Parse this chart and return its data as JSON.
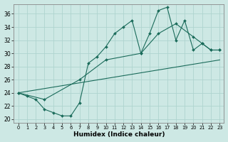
{
  "xlabel": "Humidex (Indice chaleur)",
  "ylabel": "",
  "bg_color": "#cde8e4",
  "grid_color": "#afd4cf",
  "line_color": "#1a6b5a",
  "xlim": [
    -0.5,
    23.5
  ],
  "ylim": [
    19.5,
    37.5
  ],
  "xticks": [
    0,
    1,
    2,
    3,
    4,
    5,
    6,
    7,
    8,
    9,
    10,
    11,
    12,
    13,
    14,
    15,
    16,
    17,
    18,
    19,
    20,
    21,
    22,
    23
  ],
  "yticks": [
    20,
    22,
    24,
    26,
    28,
    30,
    32,
    34,
    36
  ],
  "line1_x": [
    0,
    1,
    2,
    3,
    4,
    5,
    6,
    7,
    8,
    9,
    10,
    11,
    12,
    13,
    14,
    15,
    16,
    17,
    18,
    19,
    20,
    21,
    22,
    23
  ],
  "line1_y": [
    24,
    23.5,
    23,
    21.5,
    21,
    20.5,
    20.5,
    22.5,
    28.5,
    29.5,
    31,
    33,
    34,
    35,
    30,
    33,
    36.5,
    37,
    32,
    35,
    30.5,
    31.5,
    30.5,
    30.5
  ],
  "line2_x": [
    0,
    3,
    7,
    10,
    14,
    16,
    18,
    20,
    21,
    22,
    23
  ],
  "line2_y": [
    24,
    23,
    26,
    29,
    30,
    33,
    34.5,
    32.5,
    31.5,
    30.5,
    30.5
  ],
  "line3_x": [
    0,
    23
  ],
  "line3_y": [
    24,
    29
  ],
  "figsize": [
    3.2,
    2.0
  ],
  "dpi": 100
}
